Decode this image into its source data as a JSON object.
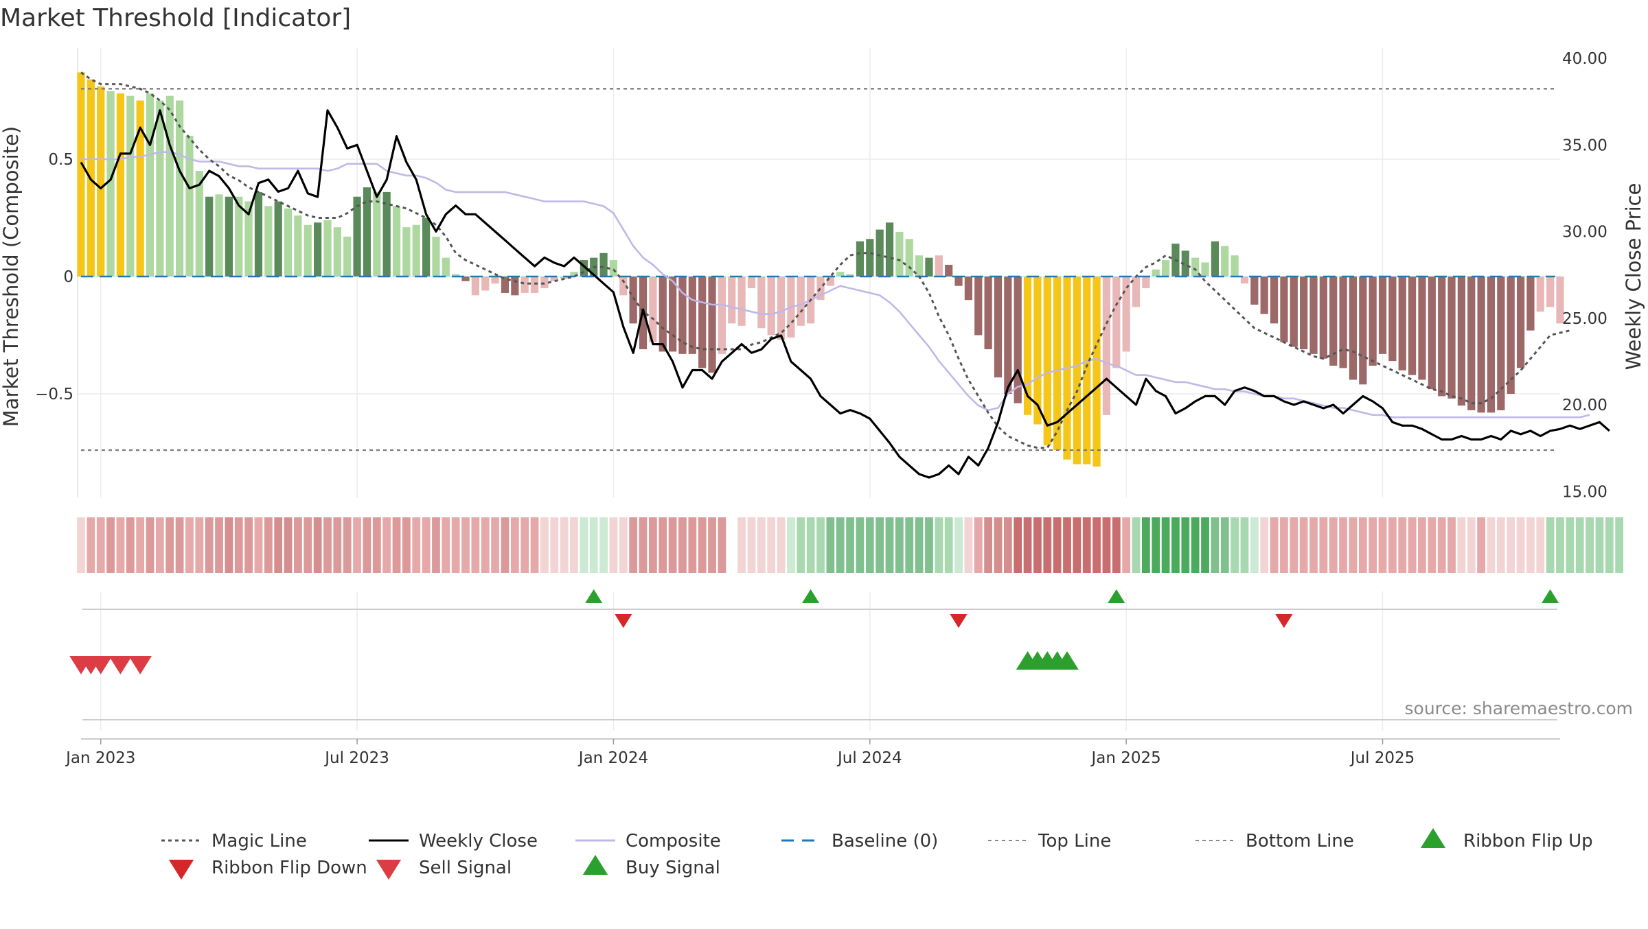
{
  "chart_data": {
    "type": "bar",
    "title": "Market Threshold [Indicator]",
    "ylabel_left": "Market Threshold (Composite)",
    "ylabel_right": "Weekly Close Price",
    "source": "source: sharemaestro.com",
    "left_ylim": [
      -0.95,
      0.97
    ],
    "right_ylim": [
      14.5,
      40.5
    ],
    "left_ticks": [
      {
        "v": 0.5,
        "label": "0.5"
      },
      {
        "v": 0,
        "label": "0"
      },
      {
        "v": -0.5,
        "label": "−0.5"
      }
    ],
    "right_ticks": [
      {
        "v": 40,
        "label": "40.00"
      },
      {
        "v": 35,
        "label": "35.00"
      },
      {
        "v": 30,
        "label": "30.00"
      },
      {
        "v": 25,
        "label": "25.00"
      },
      {
        "v": 20,
        "label": "20.00"
      },
      {
        "v": 15,
        "label": "15.00"
      }
    ],
    "x_ticks": [
      {
        "week": 2,
        "label": "Jan 2023"
      },
      {
        "week": 28,
        "label": "Jul 2023"
      },
      {
        "week": 54,
        "label": "Jan 2024"
      },
      {
        "week": 80,
        "label": "Jul 2024"
      },
      {
        "week": 106,
        "label": "Jan 2025"
      },
      {
        "week": 132,
        "label": "Jul 2025"
      }
    ],
    "top_line": 0.8,
    "bottom_line": -0.74,
    "baseline": 0,
    "composite": [
      0.87,
      0.84,
      0.81,
      0.79,
      0.78,
      0.77,
      0.75,
      0.78,
      0.75,
      0.77,
      0.75,
      0.6,
      0.45,
      0.34,
      0.35,
      0.34,
      0.34,
      0.32,
      0.36,
      0.3,
      0.32,
      0.29,
      0.26,
      0.22,
      0.23,
      0.24,
      0.21,
      0.17,
      0.34,
      0.38,
      0.36,
      0.36,
      0.3,
      0.21,
      0.22,
      0.25,
      0.17,
      0.08,
      0.01,
      -0.02,
      -0.08,
      -0.06,
      -0.03,
      -0.07,
      -0.08,
      -0.07,
      -0.07,
      -0.05,
      -0.02,
      -0.01,
      0.02,
      0.07,
      0.08,
      0.1,
      0.07,
      -0.08,
      -0.2,
      -0.31,
      -0.28,
      -0.32,
      -0.32,
      -0.33,
      -0.33,
      -0.39,
      -0.41,
      -0.33,
      -0.2,
      -0.21,
      -0.05,
      -0.22,
      -0.25,
      -0.27,
      -0.26,
      -0.21,
      -0.2,
      -0.1,
      -0.04,
      0.02,
      0.01,
      0.15,
      0.16,
      0.2,
      0.23,
      0.19,
      0.16,
      0.09,
      0.08,
      0.09,
      0.05,
      -0.04,
      -0.1,
      -0.25,
      -0.31,
      -0.43,
      -0.5,
      -0.54,
      -0.59,
      -0.63,
      -0.72,
      -0.74,
      -0.78,
      -0.8,
      -0.8,
      -0.81,
      -0.59,
      -0.39,
      -0.32,
      -0.13,
      -0.05,
      0.03,
      0.07,
      0.14,
      0.11,
      0.08,
      0.06,
      0.15,
      0.13,
      0.09,
      -0.03,
      -0.12,
      -0.16,
      -0.2,
      -0.28,
      -0.3,
      -0.31,
      -0.33,
      -0.35,
      -0.38,
      -0.39,
      -0.44,
      -0.46,
      -0.38,
      -0.33,
      -0.36,
      -0.4,
      -0.42,
      -0.44,
      -0.48,
      -0.51,
      -0.52,
      -0.55,
      -0.57,
      -0.58,
      -0.58,
      -0.57,
      -0.5,
      -0.39,
      -0.23,
      -0.15,
      -0.13,
      -0.2
    ],
    "composite_smooth": [
      0.5,
      0.5,
      0.5,
      0.5,
      0.5,
      0.51,
      0.51,
      0.52,
      0.53,
      0.53,
      0.52,
      0.5,
      0.49,
      0.49,
      0.49,
      0.48,
      0.47,
      0.47,
      0.46,
      0.46,
      0.46,
      0.46,
      0.46,
      0.46,
      0.46,
      0.45,
      0.46,
      0.48,
      0.48,
      0.48,
      0.48,
      0.45,
      0.44,
      0.43,
      0.43,
      0.42,
      0.4,
      0.37,
      0.36,
      0.36,
      0.36,
      0.36,
      0.36,
      0.36,
      0.35,
      0.34,
      0.33,
      0.32,
      0.32,
      0.32,
      0.32,
      0.32,
      0.31,
      0.3,
      0.27,
      0.2,
      0.13,
      0.08,
      0.05,
      0.01,
      -0.02,
      -0.07,
      -0.1,
      -0.11,
      -0.12,
      -0.12,
      -0.13,
      -0.14,
      -0.15,
      -0.16,
      -0.16,
      -0.15,
      -0.13,
      -0.12,
      -0.1,
      -0.08,
      -0.06,
      -0.04,
      -0.05,
      -0.06,
      -0.07,
      -0.08,
      -0.11,
      -0.15,
      -0.2,
      -0.25,
      -0.3,
      -0.36,
      -0.41,
      -0.46,
      -0.51,
      -0.55,
      -0.57,
      -0.56,
      -0.5,
      -0.47,
      -0.46,
      -0.43,
      -0.41,
      -0.4,
      -0.39,
      -0.38,
      -0.36,
      -0.35,
      -0.37,
      -0.38,
      -0.4,
      -0.42,
      -0.42,
      -0.43,
      -0.44,
      -0.45,
      -0.45,
      -0.46,
      -0.47,
      -0.48,
      -0.48,
      -0.49,
      -0.49,
      -0.5,
      -0.51,
      -0.51,
      -0.52,
      -0.52,
      -0.53,
      -0.54,
      -0.55,
      -0.56,
      -0.56,
      -0.57,
      -0.58,
      -0.59,
      -0.59,
      -0.6,
      -0.6,
      -0.6,
      -0.6,
      -0.6,
      -0.6,
      -0.6,
      -0.6,
      -0.6,
      -0.6,
      -0.6,
      -0.6,
      -0.6,
      -0.6,
      -0.6,
      -0.6,
      -0.6,
      -0.6,
      -0.6,
      -0.6,
      -0.59
    ],
    "magic_line": [
      0.87,
      0.84,
      0.82,
      0.82,
      0.82,
      0.81,
      0.8,
      0.78,
      0.75,
      0.71,
      0.64,
      0.59,
      0.54,
      0.5,
      0.47,
      0.43,
      0.41,
      0.38,
      0.36,
      0.34,
      0.32,
      0.3,
      0.28,
      0.26,
      0.25,
      0.25,
      0.25,
      0.27,
      0.3,
      0.32,
      0.32,
      0.31,
      0.3,
      0.29,
      0.27,
      0.25,
      0.22,
      0.17,
      0.1,
      0.07,
      0.05,
      0.03,
      0.01,
      -0.01,
      -0.02,
      -0.03,
      -0.03,
      -0.03,
      -0.02,
      -0.01,
      0.0,
      0.02,
      0.04,
      0.04,
      0.03,
      -0.02,
      -0.09,
      -0.15,
      -0.18,
      -0.22,
      -0.25,
      -0.28,
      -0.3,
      -0.31,
      -0.31,
      -0.31,
      -0.31,
      -0.31,
      -0.29,
      -0.28,
      -0.26,
      -0.24,
      -0.2,
      -0.15,
      -0.1,
      -0.05,
      0.0,
      0.05,
      0.09,
      0.1,
      0.1,
      0.09,
      0.08,
      0.07,
      0.04,
      0.0,
      -0.07,
      -0.17,
      -0.25,
      -0.35,
      -0.44,
      -0.51,
      -0.58,
      -0.64,
      -0.68,
      -0.7,
      -0.72,
      -0.73,
      -0.73,
      -0.66,
      -0.57,
      -0.49,
      -0.38,
      -0.29,
      -0.2,
      -0.12,
      -0.05,
      0.0,
      0.04,
      0.06,
      0.09,
      0.07,
      0.05,
      0.03,
      -0.02,
      -0.06,
      -0.1,
      -0.14,
      -0.18,
      -0.22,
      -0.24,
      -0.26,
      -0.28,
      -0.3,
      -0.32,
      -0.34,
      -0.35,
      -0.33,
      -0.31,
      -0.32,
      -0.34,
      -0.36,
      -0.38,
      -0.4,
      -0.42,
      -0.44,
      -0.46,
      -0.48,
      -0.49,
      -0.51,
      -0.52,
      -0.54,
      -0.54,
      -0.52,
      -0.48,
      -0.44,
      -0.4,
      -0.35,
      -0.3,
      -0.25,
      -0.24,
      -0.23
    ],
    "weekly_close": [
      34.0,
      33.0,
      32.5,
      33.0,
      34.5,
      34.5,
      36.0,
      35.0,
      37.0,
      35.0,
      33.5,
      32.5,
      32.7,
      33.5,
      33.2,
      32.5,
      31.5,
      31.0,
      32.8,
      33.0,
      32.3,
      32.5,
      33.5,
      32.2,
      32.0,
      37.0,
      36.0,
      34.8,
      35.0,
      33.5,
      32.0,
      33.0,
      35.5,
      34.0,
      33.0,
      31.0,
      30.0,
      31.0,
      31.5,
      31.0,
      31.0,
      30.5,
      30.0,
      29.5,
      29.0,
      28.5,
      28.0,
      28.5,
      28.2,
      28.0,
      28.5,
      28.0,
      27.5,
      27.0,
      26.5,
      24.5,
      23.0,
      25.5,
      23.5,
      23.5,
      22.5,
      21.0,
      22.0,
      22.0,
      21.5,
      22.5,
      23.0,
      23.5,
      23.0,
      23.2,
      23.8,
      24.0,
      22.5,
      22.0,
      21.5,
      20.5,
      20.0,
      19.5,
      19.7,
      19.5,
      19.2,
      18.5,
      17.8,
      17.0,
      16.5,
      16.0,
      15.8,
      16.0,
      16.5,
      16.0,
      17.0,
      16.5,
      17.5,
      19.0,
      21.0,
      22.0,
      20.5,
      20.0,
      18.8,
      19.0,
      19.5,
      20.0,
      20.5,
      21.0,
      21.5,
      21.0,
      20.5,
      20.0,
      21.5,
      20.8,
      20.5,
      19.5,
      19.8,
      20.2,
      20.5,
      20.5,
      20.0,
      20.8,
      21.0,
      20.8,
      20.5,
      20.5,
      20.2,
      20.0,
      20.2,
      20.0,
      19.8,
      20.0,
      19.5,
      20.0,
      20.5,
      20.2,
      19.8,
      19.0,
      18.8,
      18.8,
      18.6,
      18.3,
      18.0,
      18.0,
      18.2,
      18.0,
      18.0,
      18.2,
      18.0,
      18.5,
      18.3,
      18.5,
      18.2,
      18.5,
      18.6,
      18.8,
      18.6,
      18.8,
      19.0,
      18.5
    ],
    "bar_colors": [
      "#f5c518",
      "#f5c518",
      "#f5c518",
      "#add9a0",
      "#f5c518",
      "#add9a0",
      "#f5c518",
      "#add9a0",
      "#add9a0",
      "#add9a0",
      "#add9a0",
      "#add9a0",
      "#add9a0",
      "#5a8a5a",
      "#add9a0",
      "#5a8a5a",
      "#add9a0",
      "#add9a0",
      "#5a8a5a",
      "#add9a0",
      "#5a8a5a",
      "#add9a0",
      "#add9a0",
      "#add9a0",
      "#5a8a5a",
      "#add9a0",
      "#add9a0",
      "#add9a0",
      "#5a8a5a",
      "#5a8a5a",
      "#add9a0",
      "#5a8a5a",
      "#add9a0",
      "#add9a0",
      "#add9a0",
      "#5a8a5a",
      "#add9a0",
      "#add9a0",
      "#add9a0",
      "#9c6868",
      "#e8b8b8",
      "#e8b8b8",
      "#e8b8b8",
      "#9c6868",
      "#9c6868",
      "#e8b8b8",
      "#e8b8b8",
      "#e8b8b8",
      "#e8b8b8",
      "#add9a0",
      "#add9a0",
      "#5a8a5a",
      "#5a8a5a",
      "#5a8a5a",
      "#add9a0",
      "#e8b8b8",
      "#9c6868",
      "#9c6868",
      "#e8b8b8",
      "#9c6868",
      "#9c6868",
      "#9c6868",
      "#9c6868",
      "#9c6868",
      "#9c6868",
      "#e8b8b8",
      "#e8b8b8",
      "#e8b8b8",
      "#e8b8b8",
      "#e8b8b8",
      "#e8b8b8",
      "#e8b8b8",
      "#e8b8b8",
      "#e8b8b8",
      "#e8b8b8",
      "#e8b8b8",
      "#e8b8b8",
      "#add9a0",
      "#add9a0",
      "#5a8a5a",
      "#5a8a5a",
      "#5a8a5a",
      "#5a8a5a",
      "#add9a0",
      "#add9a0",
      "#add9a0",
      "#5a8a5a",
      "#e8b8b8",
      "#9c6868",
      "#9c6868",
      "#9c6868",
      "#9c6868",
      "#9c6868",
      "#9c6868",
      "#9c6868",
      "#9c6868",
      "#f5c518",
      "#f5c518",
      "#f5c518",
      "#f5c518",
      "#f5c518",
      "#f5c518",
      "#f5c518",
      "#f5c518",
      "#e8b8b8",
      "#e8b8b8",
      "#e8b8b8",
      "#e8b8b8",
      "#e8b8b8",
      "#add9a0",
      "#add9a0",
      "#5a8a5a",
      "#5a8a5a",
      "#add9a0",
      "#add9a0",
      "#5a8a5a",
      "#add9a0",
      "#add9a0",
      "#e8b8b8",
      "#9c6868",
      "#9c6868",
      "#9c6868",
      "#9c6868",
      "#9c6868",
      "#9c6868",
      "#9c6868",
      "#9c6868",
      "#9c6868",
      "#9c6868",
      "#9c6868",
      "#9c6868",
      "#9c6868",
      "#9c6868",
      "#9c6868",
      "#9c6868",
      "#9c6868",
      "#9c6868",
      "#9c6868",
      "#9c6868",
      "#9c6868",
      "#9c6868",
      "#9c6868",
      "#9c6868",
      "#9c6868",
      "#9c6868",
      "#9c6868",
      "#9c6868",
      "#9c6868",
      "#e8b8b8",
      "#e8b8b8",
      "#e8b8b8",
      "#9c6868",
      "#e8b8b8",
      "#9c6868"
    ],
    "ribbon_colors": [
      "#f2d4d4",
      "#e5a9a9",
      "#e5a9a9",
      "#dc9999",
      "#e5a9a9",
      "#dc9999",
      "#e5a9a9",
      "#dc9999",
      "#e5a9a9",
      "#dc9999",
      "#dc9999",
      "#e5a9a9",
      "#e5a9a9",
      "#dc9999",
      "#dc9999",
      "#d58e8e",
      "#dc9999",
      "#dc9999",
      "#e5a9a9",
      "#dc9999",
      "#d58e8e",
      "#d58e8e",
      "#dc9999",
      "#dc9999",
      "#d58e8e",
      "#dc9999",
      "#dc9999",
      "#dc9999",
      "#e5a9a9",
      "#dc9999",
      "#dc9999",
      "#e5a9a9",
      "#dc9999",
      "#dc9999",
      "#e5a9a9",
      "#e5a9a9",
      "#dc9999",
      "#e5a9a9",
      "#e5a9a9",
      "#e5a9a9",
      "#e5a9a9",
      "#e5a9a9",
      "#e5a9a9",
      "#dc9999",
      "#e5a9a9",
      "#e5a9a9",
      "#e5a9a9",
      "#f2d4d4",
      "#f2d4d4",
      "#f2d4d4",
      "#f2d4d4",
      "#cbe9d3",
      "#cbe9d3",
      "#cbe9d3",
      "#f2d4d4",
      "#f2d4d4",
      "#dc9999",
      "#dc9999",
      "#dc9999",
      "#dc9999",
      "#dc9999",
      "#dc9999",
      "#dc9999",
      "#dc9999",
      "#dc9999",
      "#dc9999",
      "#ffffff",
      "#f2d4d4",
      "#f2d4d4",
      "#f2d4d4",
      "#f2d4d4",
      "#f2d4d4",
      "#cbe9d3",
      "#a8d8b0",
      "#a8d8b0",
      "#a8d8b0",
      "#7fc08e",
      "#7fc08e",
      "#7fc08e",
      "#7fc08e",
      "#7fc08e",
      "#7fc08e",
      "#7fc08e",
      "#7fc08e",
      "#7fc08e",
      "#7fc08e",
      "#7fc08e",
      "#a8d8b0",
      "#a8d8b0",
      "#cbe9d3",
      "#f2d4d4",
      "#e5a9a9",
      "#d58e8e",
      "#d58e8e",
      "#d58e8e",
      "#c86e6e",
      "#c86e6e",
      "#c86e6e",
      "#c86e6e",
      "#c86e6e",
      "#c86e6e",
      "#c86e6e",
      "#c86e6e",
      "#c86e6e",
      "#c86e6e",
      "#c86e6e",
      "#e5a9a9",
      "#a8d8b0",
      "#4caa5c",
      "#4caa5c",
      "#4caa5c",
      "#4caa5c",
      "#4caa5c",
      "#4caa5c",
      "#4caa5c",
      "#7fc08e",
      "#7fc08e",
      "#a8d8b0",
      "#a8d8b0",
      "#cbe9d3",
      "#f2d4d4",
      "#e5a9a9",
      "#e5a9a9",
      "#e5a9a9",
      "#e5a9a9",
      "#e5a9a9",
      "#e5a9a9",
      "#e5a9a9",
      "#e5a9a9",
      "#e5a9a9",
      "#e5a9a9",
      "#e5a9a9",
      "#e5a9a9",
      "#e5a9a9",
      "#e5a9a9",
      "#e5a9a9",
      "#e5a9a9",
      "#e5a9a9",
      "#e5a9a9",
      "#e5a9a9",
      "#f2d4d4",
      "#f2d4d4",
      "#e5a9a9",
      "#f2d4d4",
      "#f2d4d4",
      "#f2d4d4",
      "#f2d4d4",
      "#f2d4d4",
      "#f2d4d4",
      "#a8d8b0",
      "#a8d8b0",
      "#a8d8b0",
      "#a8d8b0",
      "#a8d8b0",
      "#a8d8b0",
      "#a8d8b0",
      "#a8d8b0"
    ],
    "ribbon_flip_up_weeks": [
      52,
      74,
      105,
      149
    ],
    "ribbon_flip_down_weeks": [
      55,
      89,
      122
    ],
    "sell_signal_weeks": [
      0,
      1,
      2,
      4,
      6
    ],
    "buy_signal_weeks": [
      96,
      97,
      98,
      99,
      100
    ],
    "legend": [
      {
        "label": "Magic Line",
        "kind": "line-dotted",
        "color": "#555555"
      },
      {
        "label": "Weekly Close",
        "kind": "line-solid",
        "color": "#000000"
      },
      {
        "label": "Composite",
        "kind": "line-solid",
        "color": "#c0b8e8"
      },
      {
        "label": "Baseline (0)",
        "kind": "line-dashed",
        "color": "#1f77b4"
      },
      {
        "label": "Top Line",
        "kind": "line-dotted-light",
        "color": "#888888"
      },
      {
        "label": "Bottom Line",
        "kind": "line-dotted-light",
        "color": "#888888"
      },
      {
        "label": "Ribbon Flip Up",
        "kind": "tri-up",
        "color": "#2ca02c"
      },
      {
        "label": "Ribbon Flip Down",
        "kind": "tri-down",
        "color": "#d62728"
      },
      {
        "label": "Sell Signal",
        "kind": "tri-down",
        "color": "#dc3c44"
      },
      {
        "label": "Buy Signal",
        "kind": "tri-up",
        "color": "#2ca02c"
      }
    ],
    "colors": {
      "magic_line": "#555555",
      "weekly_close": "#000000",
      "composite_line": "#c0b8e8",
      "baseline": "#1f77b4",
      "top_bottom": "#777777",
      "flip_up": "#2ca02c",
      "flip_down": "#d62728",
      "sell": "#dc3c44",
      "buy": "#2ca02c"
    }
  }
}
